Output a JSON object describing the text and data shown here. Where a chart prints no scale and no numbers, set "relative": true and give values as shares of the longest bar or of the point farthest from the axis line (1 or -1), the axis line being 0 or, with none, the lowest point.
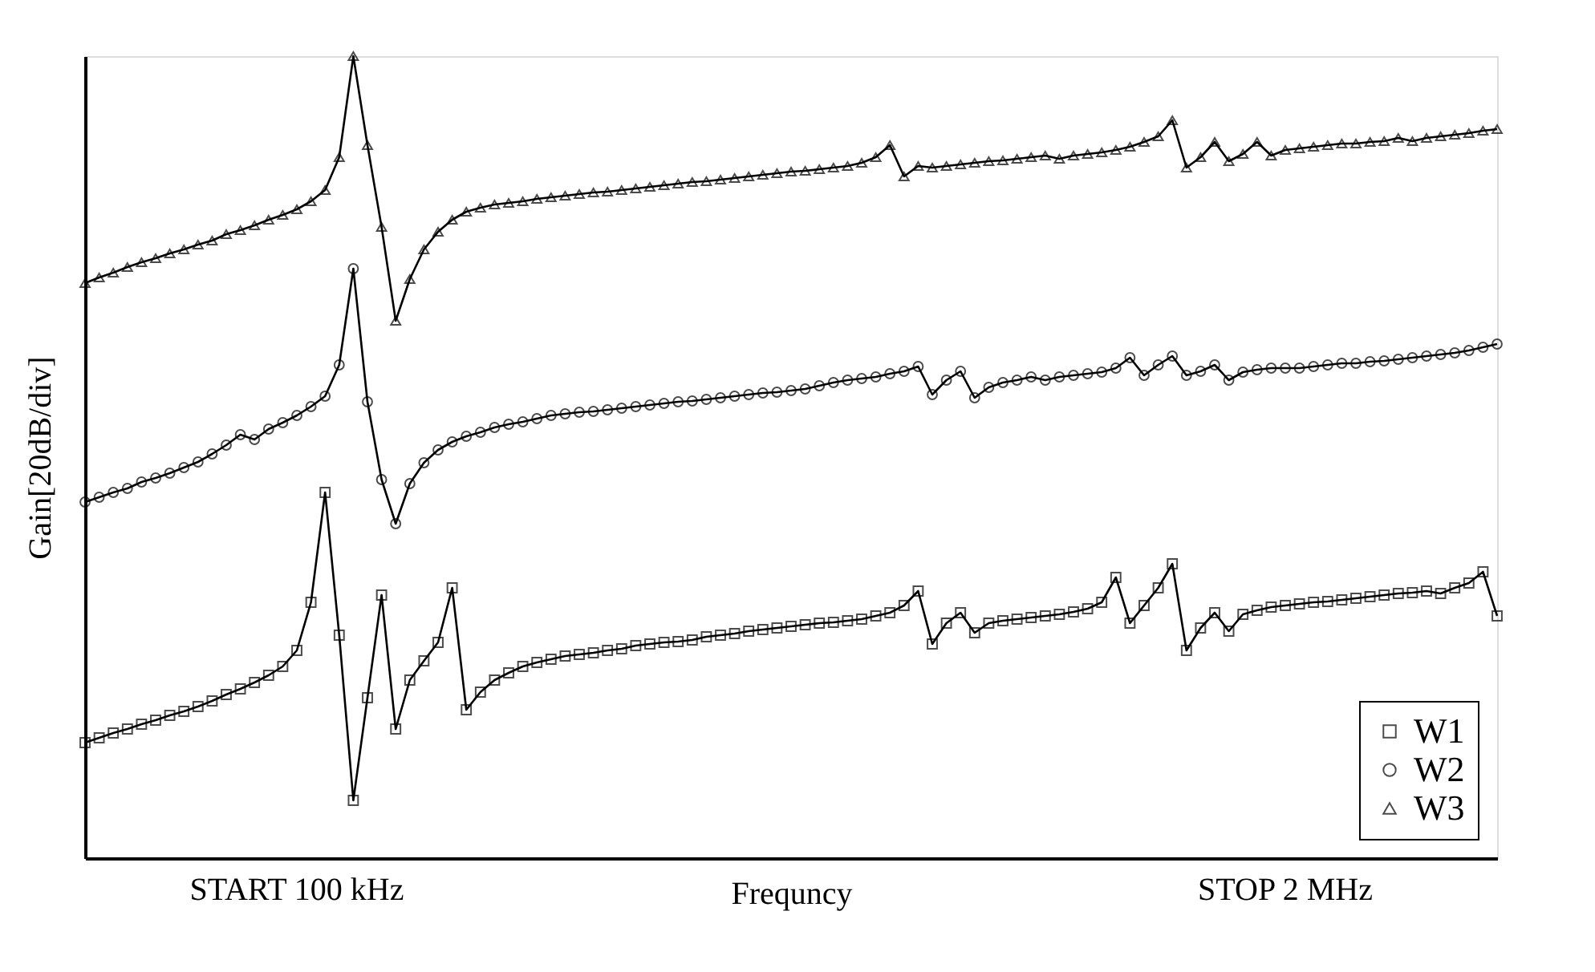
{
  "chart_data": {
    "type": "line",
    "relative": true,
    "xlabel": "Frequncy",
    "ylabel": "Gain[20dB/div]",
    "annotations": [
      "START 100 kHz",
      "STOP 2 MHz"
    ],
    "categories": [
      null,
      null,
      null,
      null,
      null,
      null,
      null,
      null,
      null,
      null,
      null,
      null,
      null,
      null,
      null,
      null,
      null,
      null,
      null,
      null,
      null,
      null,
      null,
      null,
      null,
      null,
      null,
      null,
      null,
      null,
      null,
      null,
      null,
      null,
      null,
      null,
      null,
      null,
      null,
      null,
      null,
      null,
      null,
      null,
      null,
      null,
      null,
      null,
      null,
      null,
      null,
      null,
      null,
      null,
      null,
      null,
      null,
      null,
      null,
      null,
      null,
      null,
      null,
      null,
      null,
      null,
      null,
      null,
      null,
      null,
      null,
      null,
      null,
      null,
      null,
      null,
      null,
      null,
      null,
      null,
      null,
      null,
      null,
      null,
      null,
      null,
      null,
      null,
      null,
      null,
      null,
      null,
      null,
      null,
      null,
      null,
      null,
      null,
      null,
      null,
      null
    ],
    "legend": "bottom right",
    "grid": false,
    "line_style": "solid",
    "series": [
      {
        "name": "W1",
        "color": "#000000",
        "marker": "square",
        "values": [
          0.144,
          0.15,
          0.156,
          0.161,
          0.167,
          0.172,
          0.178,
          0.183,
          0.189,
          0.196,
          0.204,
          0.211,
          0.219,
          0.228,
          0.239,
          0.259,
          0.319,
          0.456,
          0.278,
          0.072,
          0.2,
          0.328,
          0.161,
          0.222,
          0.246,
          0.269,
          0.337,
          0.185,
          0.207,
          0.222,
          0.231,
          0.239,
          0.244,
          0.248,
          0.252,
          0.254,
          0.256,
          0.259,
          0.261,
          0.265,
          0.267,
          0.269,
          0.27,
          0.272,
          0.276,
          0.278,
          0.28,
          0.283,
          0.285,
          0.287,
          0.289,
          0.291,
          0.293,
          0.294,
          0.296,
          0.298,
          0.302,
          0.306,
          0.315,
          0.333,
          0.267,
          0.293,
          0.306,
          0.281,
          0.293,
          0.296,
          0.298,
          0.3,
          0.302,
          0.304,
          0.307,
          0.311,
          0.319,
          0.35,
          0.293,
          0.315,
          0.337,
          0.367,
          0.259,
          0.287,
          0.306,
          0.283,
          0.304,
          0.309,
          0.313,
          0.315,
          0.317,
          0.319,
          0.32,
          0.322,
          0.324,
          0.326,
          0.328,
          0.33,
          0.331,
          0.333,
          0.33,
          0.337,
          0.343,
          0.357,
          0.302
        ]
      },
      {
        "name": "W2",
        "color": "#000000",
        "marker": "circle",
        "values": [
          0.444,
          0.45,
          0.456,
          0.461,
          0.469,
          0.474,
          0.48,
          0.487,
          0.494,
          0.504,
          0.515,
          0.528,
          0.522,
          0.535,
          0.543,
          0.552,
          0.563,
          0.576,
          0.615,
          0.735,
          0.569,
          0.472,
          0.417,
          0.467,
          0.493,
          0.509,
          0.519,
          0.526,
          0.531,
          0.537,
          0.541,
          0.544,
          0.548,
          0.552,
          0.554,
          0.556,
          0.557,
          0.559,
          0.561,
          0.563,
          0.565,
          0.567,
          0.569,
          0.57,
          0.572,
          0.574,
          0.576,
          0.578,
          0.58,
          0.581,
          0.583,
          0.585,
          0.589,
          0.593,
          0.596,
          0.598,
          0.6,
          0.604,
          0.607,
          0.613,
          0.578,
          0.596,
          0.607,
          0.574,
          0.587,
          0.593,
          0.596,
          0.6,
          0.596,
          0.6,
          0.602,
          0.604,
          0.606,
          0.611,
          0.624,
          0.602,
          0.615,
          0.626,
          0.602,
          0.607,
          0.615,
          0.596,
          0.606,
          0.609,
          0.611,
          0.611,
          0.611,
          0.613,
          0.615,
          0.617,
          0.617,
          0.619,
          0.62,
          0.622,
          0.624,
          0.626,
          0.628,
          0.63,
          0.633,
          0.637,
          0.641
        ]
      },
      {
        "name": "W3",
        "color": "#000000",
        "marker": "triangle",
        "values": [
          0.717,
          0.724,
          0.73,
          0.737,
          0.743,
          0.748,
          0.754,
          0.759,
          0.765,
          0.77,
          0.778,
          0.783,
          0.789,
          0.796,
          0.802,
          0.809,
          0.819,
          0.833,
          0.874,
          1,
          0.889,
          0.787,
          0.67,
          0.722,
          0.759,
          0.781,
          0.796,
          0.806,
          0.811,
          0.815,
          0.817,
          0.819,
          0.822,
          0.824,
          0.826,
          0.828,
          0.83,
          0.831,
          0.833,
          0.835,
          0.837,
          0.839,
          0.841,
          0.843,
          0.844,
          0.846,
          0.848,
          0.85,
          0.852,
          0.854,
          0.856,
          0.857,
          0.859,
          0.861,
          0.863,
          0.867,
          0.874,
          0.889,
          0.85,
          0.863,
          0.861,
          0.863,
          0.865,
          0.867,
          0.869,
          0.87,
          0.872,
          0.874,
          0.876,
          0.872,
          0.876,
          0.878,
          0.88,
          0.883,
          0.887,
          0.893,
          0.9,
          0.92,
          0.861,
          0.874,
          0.893,
          0.869,
          0.878,
          0.893,
          0.876,
          0.883,
          0.885,
          0.887,
          0.889,
          0.891,
          0.891,
          0.893,
          0.894,
          0.898,
          0.894,
          0.898,
          0.9,
          0.902,
          0.904,
          0.907,
          0.909
        ]
      }
    ]
  }
}
